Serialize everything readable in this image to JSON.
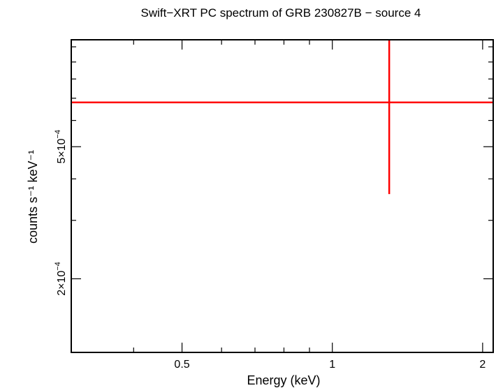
{
  "chart_data": {
    "type": "scatter",
    "title": "Swift−XRT PC spectrum of GRB 230827B − source 4",
    "xlabel": "Energy (keV)",
    "ylabel": "counts s⁻¹ keV⁻¹",
    "x_scale": "log",
    "y_scale": "log",
    "xlim": [
      0.3,
      2.1
    ],
    "ylim": [
      0.00012,
      0.00105
    ],
    "x_ticks": [
      {
        "value": 0.5,
        "label": "0.5"
      },
      {
        "value": 1,
        "label": "1"
      },
      {
        "value": 2,
        "label": "2"
      }
    ],
    "x_minor_ticks": [
      0.3,
      0.4,
      0.6,
      0.7,
      0.8,
      0.9
    ],
    "y_ticks": [
      {
        "value": 0.0002,
        "mantissa": "2×10",
        "exponent": "−4"
      },
      {
        "value": 0.0005,
        "mantissa": "5×10",
        "exponent": "−4"
      }
    ],
    "y_minor_ticks": [
      0.0003,
      0.0004,
      0.0006,
      0.0007,
      0.0008,
      0.0009,
      0.001
    ],
    "series": [
      {
        "color": "#ff0000",
        "points": [
          {
            "x": 1.3,
            "xlo": 0.3,
            "xhi": 2.1,
            "y": 0.00068,
            "ylo": 0.00036,
            "yhi": 0.00105
          }
        ]
      }
    ]
  }
}
